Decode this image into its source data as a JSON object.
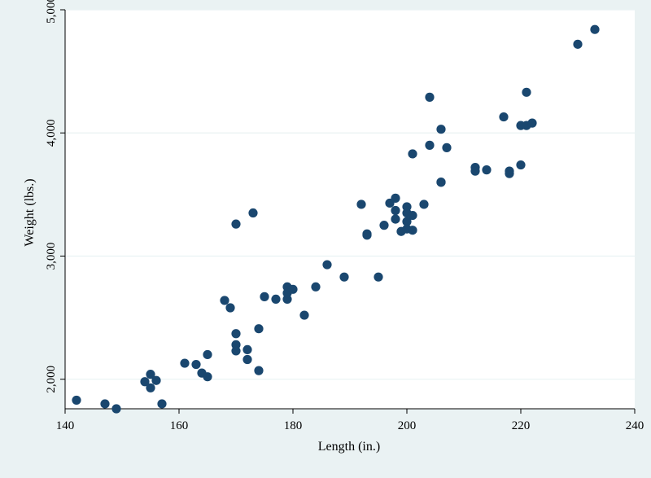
{
  "chart_data": {
    "type": "scatter",
    "title": "",
    "xlabel": "Length (in.)",
    "ylabel": "Weight (lbs.)",
    "xlim": [
      140,
      240
    ],
    "ylim": [
      1760,
      5000
    ],
    "x_ticks": [
      140,
      160,
      180,
      200,
      220,
      240
    ],
    "x_tick_labels": [
      "140",
      "160",
      "180",
      "200",
      "220",
      "240"
    ],
    "y_ticks": [
      2000,
      3000,
      4000,
      5000
    ],
    "y_tick_labels": [
      "2,000",
      "3,000",
      "4,000",
      "5,000"
    ],
    "grid": "horizontal",
    "legend": "none",
    "colors": {
      "background": "#eaf2f3",
      "plot_area": "#ffffff",
      "marker": "#1a476f",
      "grid": "#eaf2f3"
    },
    "series": [
      {
        "points": [
          [
            142,
            1830
          ],
          [
            147,
            1800
          ],
          [
            149,
            1760
          ],
          [
            157,
            1800
          ],
          [
            154,
            1980
          ],
          [
            155,
            2040
          ],
          [
            155,
            1930
          ],
          [
            156,
            1990
          ],
          [
            161,
            2130
          ],
          [
            163,
            2120
          ],
          [
            164,
            2050
          ],
          [
            165,
            2020
          ],
          [
            165,
            2200
          ],
          [
            168,
            2640
          ],
          [
            169,
            2580
          ],
          [
            170,
            2370
          ],
          [
            170,
            2280
          ],
          [
            170,
            2230
          ],
          [
            170,
            3260
          ],
          [
            172,
            2240
          ],
          [
            172,
            2160
          ],
          [
            173,
            3350
          ],
          [
            174,
            2410
          ],
          [
            174,
            2070
          ],
          [
            175,
            2670
          ],
          [
            177,
            2650
          ],
          [
            179,
            2750
          ],
          [
            179,
            2650
          ],
          [
            179,
            2700
          ],
          [
            180,
            2730
          ],
          [
            182,
            2520
          ],
          [
            184,
            2750
          ],
          [
            186,
            2930
          ],
          [
            189,
            2830
          ],
          [
            192,
            3420
          ],
          [
            193,
            3170
          ],
          [
            193,
            3180
          ],
          [
            195,
            2830
          ],
          [
            196,
            3250
          ],
          [
            197,
            3430
          ],
          [
            198,
            3470
          ],
          [
            198,
            3370
          ],
          [
            198,
            3300
          ],
          [
            199,
            3200
          ],
          [
            200,
            3400
          ],
          [
            200,
            3350
          ],
          [
            200,
            3280
          ],
          [
            200,
            3220
          ],
          [
            201,
            3330
          ],
          [
            201,
            3210
          ],
          [
            201,
            3830
          ],
          [
            203,
            3420
          ],
          [
            204,
            4290
          ],
          [
            204,
            3900
          ],
          [
            206,
            4030
          ],
          [
            206,
            3600
          ],
          [
            206,
            3600
          ],
          [
            207,
            3880
          ],
          [
            212,
            3720
          ],
          [
            212,
            3690
          ],
          [
            214,
            3700
          ],
          [
            217,
            4130
          ],
          [
            218,
            3670
          ],
          [
            218,
            3690
          ],
          [
            220,
            4060
          ],
          [
            220,
            3740
          ],
          [
            221,
            4330
          ],
          [
            221,
            4060
          ],
          [
            222,
            4080
          ],
          [
            230,
            4720
          ],
          [
            233,
            4840
          ]
        ]
      }
    ]
  }
}
